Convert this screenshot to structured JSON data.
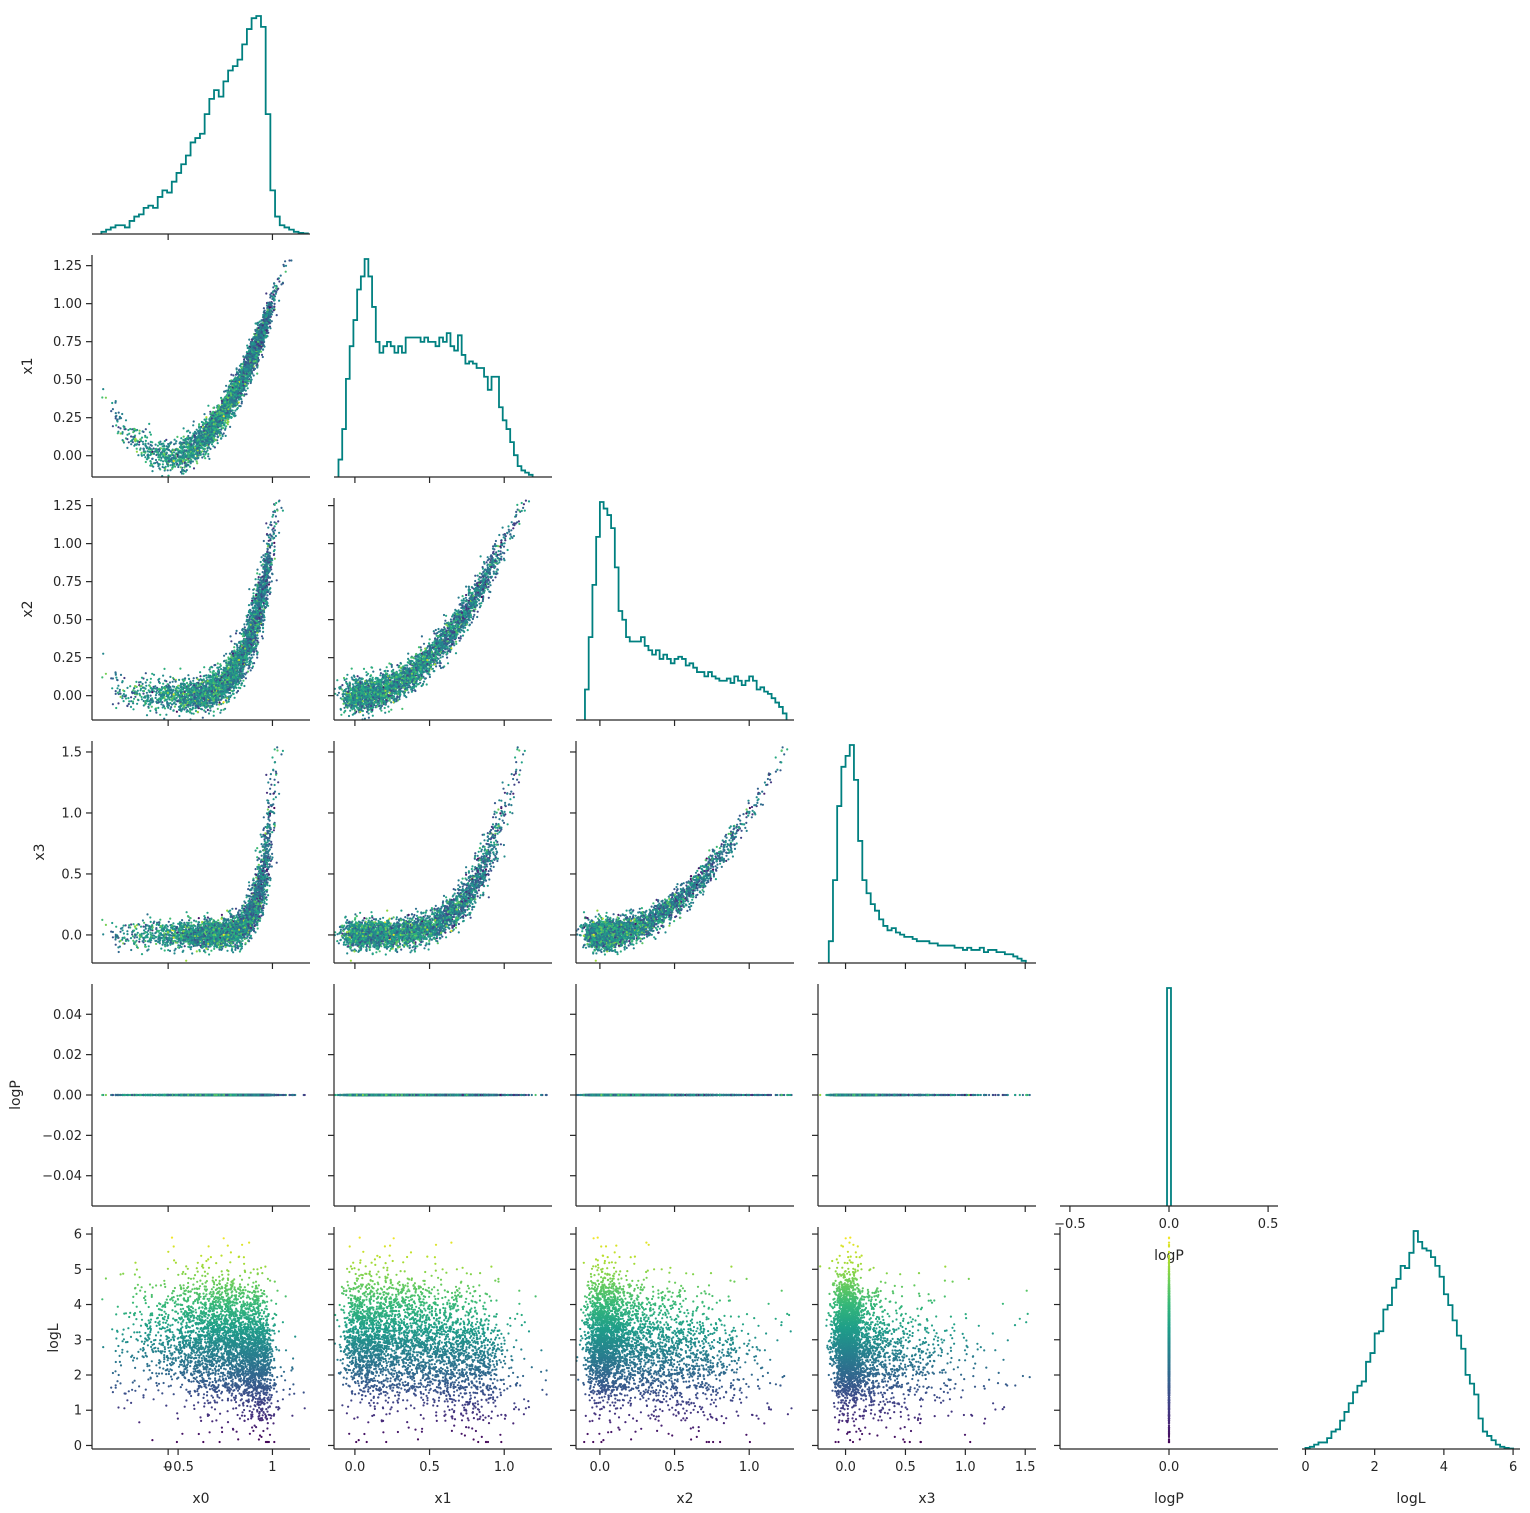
{
  "chart_data": {
    "type": "scatter",
    "layout": "corner",
    "n_samples_approx": 10000,
    "variables": [
      "x0",
      "x1",
      "x2",
      "x3",
      "logP",
      "logL"
    ],
    "labels": {
      "x0": "x0",
      "x1": "x1",
      "x2": "x2",
      "x3": "x3",
      "logP": "logP",
      "logL": "logL"
    },
    "ranges": {
      "x0": [
        -0.73,
        1.36
      ],
      "x1": [
        -0.14,
        1.32
      ],
      "x2": [
        -0.16,
        1.3
      ],
      "x3": [
        -0.23,
        1.59
      ],
      "logP": [
        -0.055,
        0.055
      ],
      "logL": [
        -0.1,
        6.2
      ]
    },
    "ticks": {
      "x0": {
        "values": [
          0,
          1
        ],
        "labels": [
          "0",
          "1"
        ]
      },
      "x1": {
        "values": [
          0.0,
          0.5,
          1.0
        ],
        "labels": [
          "0.0",
          "0.5",
          "1.0"
        ]
      },
      "x2": {
        "values": [
          0.0,
          0.5,
          1.0
        ],
        "labels": [
          "0.0",
          "0.5",
          "1.0"
        ]
      },
      "x3": {
        "values": [
          0.0,
          0.5,
          1.0,
          1.5
        ],
        "labels": [
          "0.0",
          "0.5",
          "1.0",
          "1.5"
        ]
      },
      "logP": {
        "values": [
          -0.5,
          0.0,
          0.5
        ],
        "labels": [
          "−0.5",
          "0.0",
          "0.5"
        ]
      },
      "logL": {
        "values": [
          0,
          2,
          4,
          6
        ],
        "labels": [
          "0",
          "2",
          "4",
          "6"
        ]
      }
    },
    "yticks": {
      "x1": {
        "values": [
          0.0,
          0.25,
          0.5,
          0.75,
          1.0,
          1.25
        ],
        "labels": [
          "0.00",
          "0.25",
          "0.50",
          "0.75",
          "1.00",
          "1.25"
        ]
      },
      "x2": {
        "values": [
          0.0,
          0.25,
          0.5,
          0.75,
          1.0,
          1.25
        ],
        "labels": [
          "0.00",
          "0.25",
          "0.50",
          "0.75",
          "1.00",
          "1.25"
        ]
      },
      "x3": {
        "values": [
          0.0,
          0.5,
          1.0,
          1.5
        ],
        "labels": [
          "0.0",
          "0.5",
          "1.0",
          "1.5"
        ]
      },
      "logP": {
        "values": [
          -0.04,
          -0.02,
          0.0,
          0.02,
          0.04
        ],
        "labels": [
          "−0.04",
          "−0.02",
          "0.00",
          "0.02",
          "0.04"
        ]
      },
      "logL": {
        "values": [
          0,
          1,
          2,
          3,
          4,
          5,
          6
        ],
        "labels": [
          "0",
          "1",
          "2",
          "3",
          "4",
          "5",
          "6"
        ]
      }
    },
    "diag_xrange_logP": [
      -0.55,
      0.55
    ],
    "histograms": {
      "x0": {
        "edges": [
          -0.64,
          -0.595,
          -0.55,
          -0.505,
          -0.46,
          -0.415,
          -0.37,
          -0.325,
          -0.28,
          -0.235,
          -0.19,
          -0.145,
          -0.1,
          -0.055,
          -0.01,
          0.035,
          0.08,
          0.125,
          0.17,
          0.215,
          0.26,
          0.305,
          0.35,
          0.395,
          0.44,
          0.485,
          0.53,
          0.575,
          0.62,
          0.665,
          0.71,
          0.755,
          0.8,
          0.845,
          0.89,
          0.935,
          0.98,
          1.025,
          1.07,
          1.115,
          1.16,
          1.205,
          1.25,
          1.295,
          1.34
        ],
        "counts": [
          1,
          2,
          3,
          4,
          4,
          3,
          6,
          8,
          9,
          12,
          13,
          12,
          17,
          20,
          19,
          24,
          28,
          32,
          36,
          42,
          44,
          46,
          55,
          62,
          66,
          63,
          70,
          75,
          77,
          80,
          87,
          94,
          99,
          100,
          95,
          55,
          20,
          8,
          4,
          3,
          2,
          1,
          0.5,
          0.3
        ]
      },
      "x1": {
        "edges": [
          -0.11,
          -0.085,
          -0.06,
          -0.035,
          -0.01,
          0.015,
          0.04,
          0.065,
          0.09,
          0.115,
          0.14,
          0.165,
          0.19,
          0.215,
          0.24,
          0.265,
          0.29,
          0.315,
          0.34,
          0.365,
          0.39,
          0.415,
          0.44,
          0.465,
          0.49,
          0.515,
          0.54,
          0.565,
          0.59,
          0.615,
          0.64,
          0.665,
          0.69,
          0.715,
          0.74,
          0.765,
          0.79,
          0.815,
          0.84,
          0.865,
          0.89,
          0.915,
          0.94,
          0.965,
          0.99,
          1.015,
          1.04,
          1.065,
          1.09,
          1.115,
          1.14,
          1.165,
          1.19
        ],
        "counts": [
          8,
          22,
          45,
          60,
          72,
          86,
          92,
          100,
          92,
          78,
          62,
          57,
          60,
          62,
          60,
          57,
          60,
          57,
          64,
          64,
          64,
          64,
          62,
          64,
          62,
          62,
          60,
          64,
          62,
          66,
          60,
          58,
          65,
          56,
          52,
          53,
          52,
          50,
          50,
          46,
          40,
          46,
          46,
          32,
          26,
          22,
          16,
          10,
          5,
          3,
          2,
          1
        ]
      },
      "x2": {
        "edges": [
          -0.1,
          -0.075,
          -0.05,
          -0.025,
          0.0,
          0.025,
          0.05,
          0.075,
          0.1,
          0.125,
          0.15,
          0.175,
          0.2,
          0.225,
          0.25,
          0.275,
          0.3,
          0.325,
          0.35,
          0.375,
          0.4,
          0.425,
          0.45,
          0.475,
          0.5,
          0.525,
          0.55,
          0.575,
          0.6,
          0.625,
          0.65,
          0.675,
          0.7,
          0.725,
          0.75,
          0.775,
          0.8,
          0.825,
          0.85,
          0.875,
          0.9,
          0.925,
          0.95,
          0.975,
          1.0,
          1.025,
          1.05,
          1.075,
          1.1,
          1.125,
          1.15,
          1.175,
          1.2,
          1.225,
          1.25
        ],
        "counts": [
          14,
          38,
          62,
          84,
          100,
          97,
          94,
          88,
          70,
          50,
          46,
          38,
          36,
          36,
          36,
          38,
          34,
          32,
          30,
          32,
          28,
          30,
          28,
          26,
          28,
          29,
          28,
          25,
          26,
          24,
          22,
          22,
          20,
          22,
          20,
          19,
          18,
          18,
          19,
          17,
          20,
          18,
          16,
          18,
          20,
          18,
          14,
          15,
          13,
          12,
          10,
          8,
          6,
          3
        ]
      },
      "x3": {
        "edges": [
          -0.14,
          -0.105,
          -0.07,
          -0.035,
          0.0,
          0.035,
          0.07,
          0.105,
          0.14,
          0.175,
          0.21,
          0.245,
          0.28,
          0.315,
          0.35,
          0.385,
          0.42,
          0.455,
          0.49,
          0.525,
          0.56,
          0.595,
          0.63,
          0.665,
          0.7,
          0.735,
          0.77,
          0.805,
          0.84,
          0.875,
          0.91,
          0.945,
          0.98,
          1.015,
          1.05,
          1.085,
          1.12,
          1.155,
          1.19,
          1.225,
          1.26,
          1.295,
          1.33,
          1.365,
          1.4,
          1.435,
          1.47,
          1.505
        ],
        "counts": [
          10,
          38,
          72,
          90,
          95,
          100,
          84,
          56,
          38,
          32,
          27,
          24,
          20,
          17,
          15,
          16,
          14,
          13,
          12,
          12,
          11,
          10,
          10,
          10,
          9,
          9,
          8,
          8,
          8,
          8,
          7,
          7,
          6,
          7,
          6,
          6,
          7,
          5,
          6,
          6,
          5,
          5,
          4,
          4,
          3,
          2,
          1
        ]
      },
      "logP": {
        "edges": [
          -0.01,
          0.01
        ],
        "counts": [
          100
        ]
      },
      "logL": {
        "edges": [
          0.0,
          0.125,
          0.25,
          0.375,
          0.5,
          0.625,
          0.75,
          0.875,
          1.0,
          1.125,
          1.25,
          1.375,
          1.5,
          1.625,
          1.75,
          1.875,
          2.0,
          2.125,
          2.25,
          2.375,
          2.5,
          2.625,
          2.75,
          2.875,
          3.0,
          3.125,
          3.25,
          3.375,
          3.5,
          3.625,
          3.75,
          3.875,
          4.0,
          4.125,
          4.25,
          4.375,
          4.5,
          4.625,
          4.75,
          4.875,
          5.0,
          5.125,
          5.25,
          5.375,
          5.5,
          5.625,
          5.75,
          5.875,
          6.0
        ],
        "counts": [
          0.5,
          1,
          2,
          3,
          3,
          5,
          8,
          9,
          13,
          17,
          21,
          26,
          29,
          31,
          40,
          44,
          53,
          54,
          64,
          66,
          74,
          78,
          84,
          83,
          90,
          100,
          95,
          92,
          91,
          88,
          84,
          79,
          71,
          66,
          59,
          52,
          46,
          34,
          30,
          25,
          14,
          8,
          6,
          4,
          2,
          1,
          0.5,
          0.2
        ]
      }
    },
    "colormap": {
      "name": "viridis",
      "variable": "logL",
      "stops": [
        "#440154",
        "#482878",
        "#3e4989",
        "#31688e",
        "#26828e",
        "#1f9e89",
        "#35b779",
        "#6ece58",
        "#b5de2b",
        "#fde725"
      ]
    },
    "hist_color": "#008080",
    "background": "#ffffff",
    "axis_color": "#262626"
  }
}
